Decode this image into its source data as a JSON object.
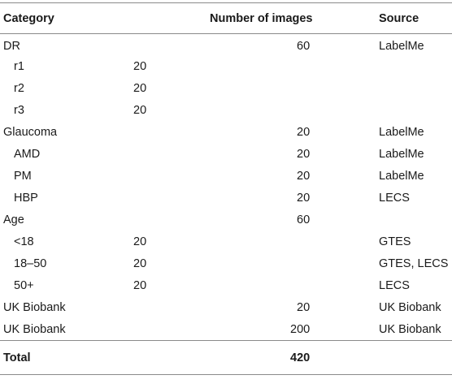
{
  "table": {
    "headers": {
      "category": "Category",
      "number": "Number of images",
      "source": "Source"
    },
    "rows": [
      {
        "category": "DR",
        "indent": false,
        "sub": "",
        "number": "60",
        "source": "LabelMe"
      },
      {
        "category": "r1",
        "indent": true,
        "sub": "20",
        "number": "",
        "source": ""
      },
      {
        "category": "r2",
        "indent": true,
        "sub": "20",
        "number": "",
        "source": ""
      },
      {
        "category": "r3",
        "indent": true,
        "sub": "20",
        "number": "",
        "source": ""
      },
      {
        "category": "Glaucoma",
        "indent": false,
        "sub": "",
        "number": "20",
        "source": "LabelMe"
      },
      {
        "category": "AMD",
        "indent": true,
        "sub": "",
        "number": "20",
        "source": "LabelMe"
      },
      {
        "category": "PM",
        "indent": true,
        "sub": "",
        "number": "20",
        "source": "LabelMe"
      },
      {
        "category": "HBP",
        "indent": true,
        "sub": "",
        "number": "20",
        "source": "LECS"
      },
      {
        "category": "Age",
        "indent": false,
        "sub": "",
        "number": "60",
        "source": ""
      },
      {
        "category": "<18",
        "indent": true,
        "sub": "20",
        "number": "",
        "source": "GTES"
      },
      {
        "category": "18–50",
        "indent": true,
        "sub": "20",
        "number": "",
        "source": "GTES, LECS"
      },
      {
        "category": "50+",
        "indent": true,
        "sub": "20",
        "number": "",
        "source": "LECS"
      },
      {
        "category": "UK Biobank",
        "indent": false,
        "sub": "",
        "number": "20",
        "source": "UK Biobank"
      },
      {
        "category": "UK Biobank",
        "indent": false,
        "sub": "",
        "number": "200",
        "source": "UK Biobank"
      }
    ],
    "total": {
      "label": "Total",
      "number": "420"
    }
  }
}
